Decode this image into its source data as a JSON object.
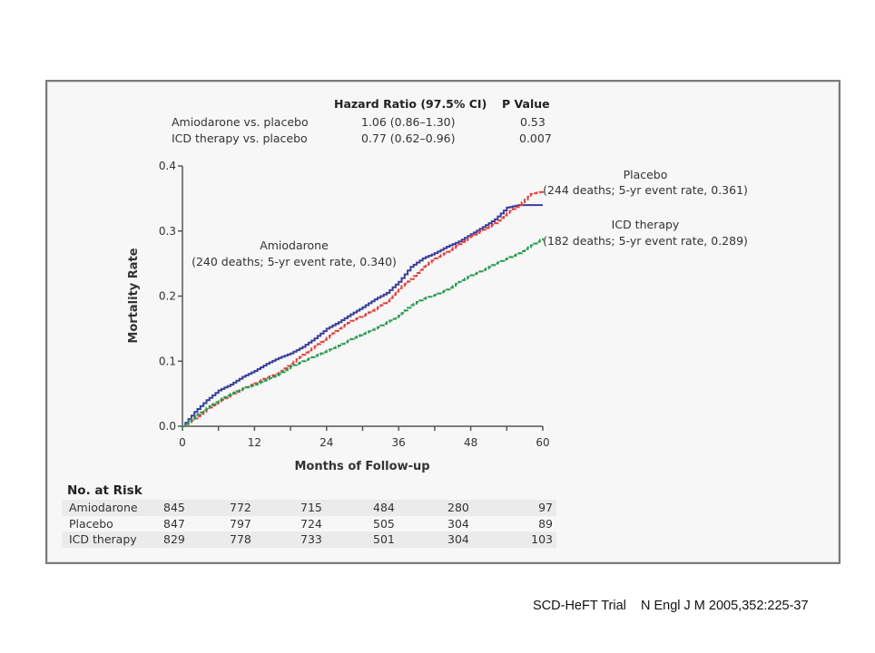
{
  "hazard_table": {
    "header_hr": "Hazard Ratio (97.5% CI)",
    "header_p": "P Value",
    "rows": [
      {
        "label": "Amiodarone vs. placebo",
        "hr": "1.06 (0.86–1.30)",
        "p": "0.53"
      },
      {
        "label": "ICD therapy vs. placebo",
        "hr": "0.77 (0.62–0.96)",
        "p": "0.007"
      }
    ]
  },
  "chart_data": {
    "type": "line",
    "title": "",
    "xlabel": "Months of Follow-up",
    "ylabel": "Mortality Rate",
    "xlim": [
      0,
      60
    ],
    "ylim": [
      0,
      0.4
    ],
    "xticks": [
      0,
      12,
      24,
      36,
      48,
      60
    ],
    "xminor_step": 6,
    "yticks": [
      "0.0",
      "0.1",
      "0.2",
      "0.3",
      "0.4"
    ],
    "grid": false,
    "series": [
      {
        "name": "Amiodarone",
        "annotation": "(240 deaths; 5-yr event rate, 0.340)",
        "color": "#3a3f9a",
        "style": "solid",
        "x": [
          0,
          2,
          4,
          6,
          8,
          10,
          12,
          14,
          16,
          18,
          20,
          22,
          24,
          26,
          28,
          30,
          32,
          34,
          36,
          38,
          40,
          42,
          44,
          46,
          48,
          50,
          52,
          54,
          56,
          58,
          60
        ],
        "y": [
          0,
          0.022,
          0.04,
          0.055,
          0.064,
          0.076,
          0.085,
          0.096,
          0.105,
          0.112,
          0.122,
          0.135,
          0.15,
          0.16,
          0.172,
          0.183,
          0.195,
          0.205,
          0.222,
          0.245,
          0.258,
          0.266,
          0.276,
          0.284,
          0.295,
          0.306,
          0.318,
          0.336,
          0.34,
          0.34,
          0.34
        ]
      },
      {
        "name": "Placebo",
        "annotation": "(244 deaths; 5-yr event rate, 0.361)",
        "color": "#e04040",
        "style": "dashed",
        "x": [
          0,
          2,
          4,
          6,
          8,
          10,
          12,
          14,
          16,
          18,
          20,
          22,
          24,
          26,
          28,
          30,
          32,
          34,
          36,
          38,
          40,
          42,
          44,
          46,
          48,
          50,
          52,
          54,
          56,
          58,
          60
        ],
        "y": [
          0,
          0.012,
          0.026,
          0.038,
          0.048,
          0.058,
          0.066,
          0.075,
          0.082,
          0.096,
          0.11,
          0.123,
          0.136,
          0.15,
          0.162,
          0.17,
          0.18,
          0.192,
          0.212,
          0.226,
          0.245,
          0.258,
          0.268,
          0.28,
          0.292,
          0.302,
          0.312,
          0.328,
          0.34,
          0.357,
          0.361
        ]
      },
      {
        "name": "ICD therapy",
        "annotation": "(182 deaths; 5-yr event rate, 0.289)",
        "color": "#2a9a50",
        "style": "dashed",
        "x": [
          0,
          2,
          4,
          6,
          8,
          10,
          12,
          14,
          16,
          18,
          20,
          22,
          24,
          26,
          28,
          30,
          32,
          34,
          36,
          38,
          40,
          42,
          44,
          46,
          48,
          50,
          52,
          54,
          56,
          58,
          60
        ],
        "y": [
          0,
          0.015,
          0.028,
          0.04,
          0.05,
          0.058,
          0.064,
          0.072,
          0.08,
          0.092,
          0.1,
          0.108,
          0.116,
          0.124,
          0.134,
          0.142,
          0.15,
          0.16,
          0.17,
          0.186,
          0.196,
          0.202,
          0.21,
          0.222,
          0.232,
          0.24,
          0.25,
          0.258,
          0.266,
          0.278,
          0.289
        ]
      }
    ]
  },
  "risk_table": {
    "title": "No. at Risk",
    "rows": [
      {
        "label": "Amiodarone",
        "values": [
          "845",
          "772",
          "715",
          "484",
          "280",
          "97"
        ]
      },
      {
        "label": "Placebo",
        "values": [
          "847",
          "797",
          "724",
          "505",
          "304",
          "89"
        ]
      },
      {
        "label": "ICD therapy",
        "values": [
          "829",
          "778",
          "733",
          "501",
          "304",
          "103"
        ]
      }
    ]
  },
  "citation": "SCD-HeFT Trial    N Engl J M 2005,352:225-37"
}
